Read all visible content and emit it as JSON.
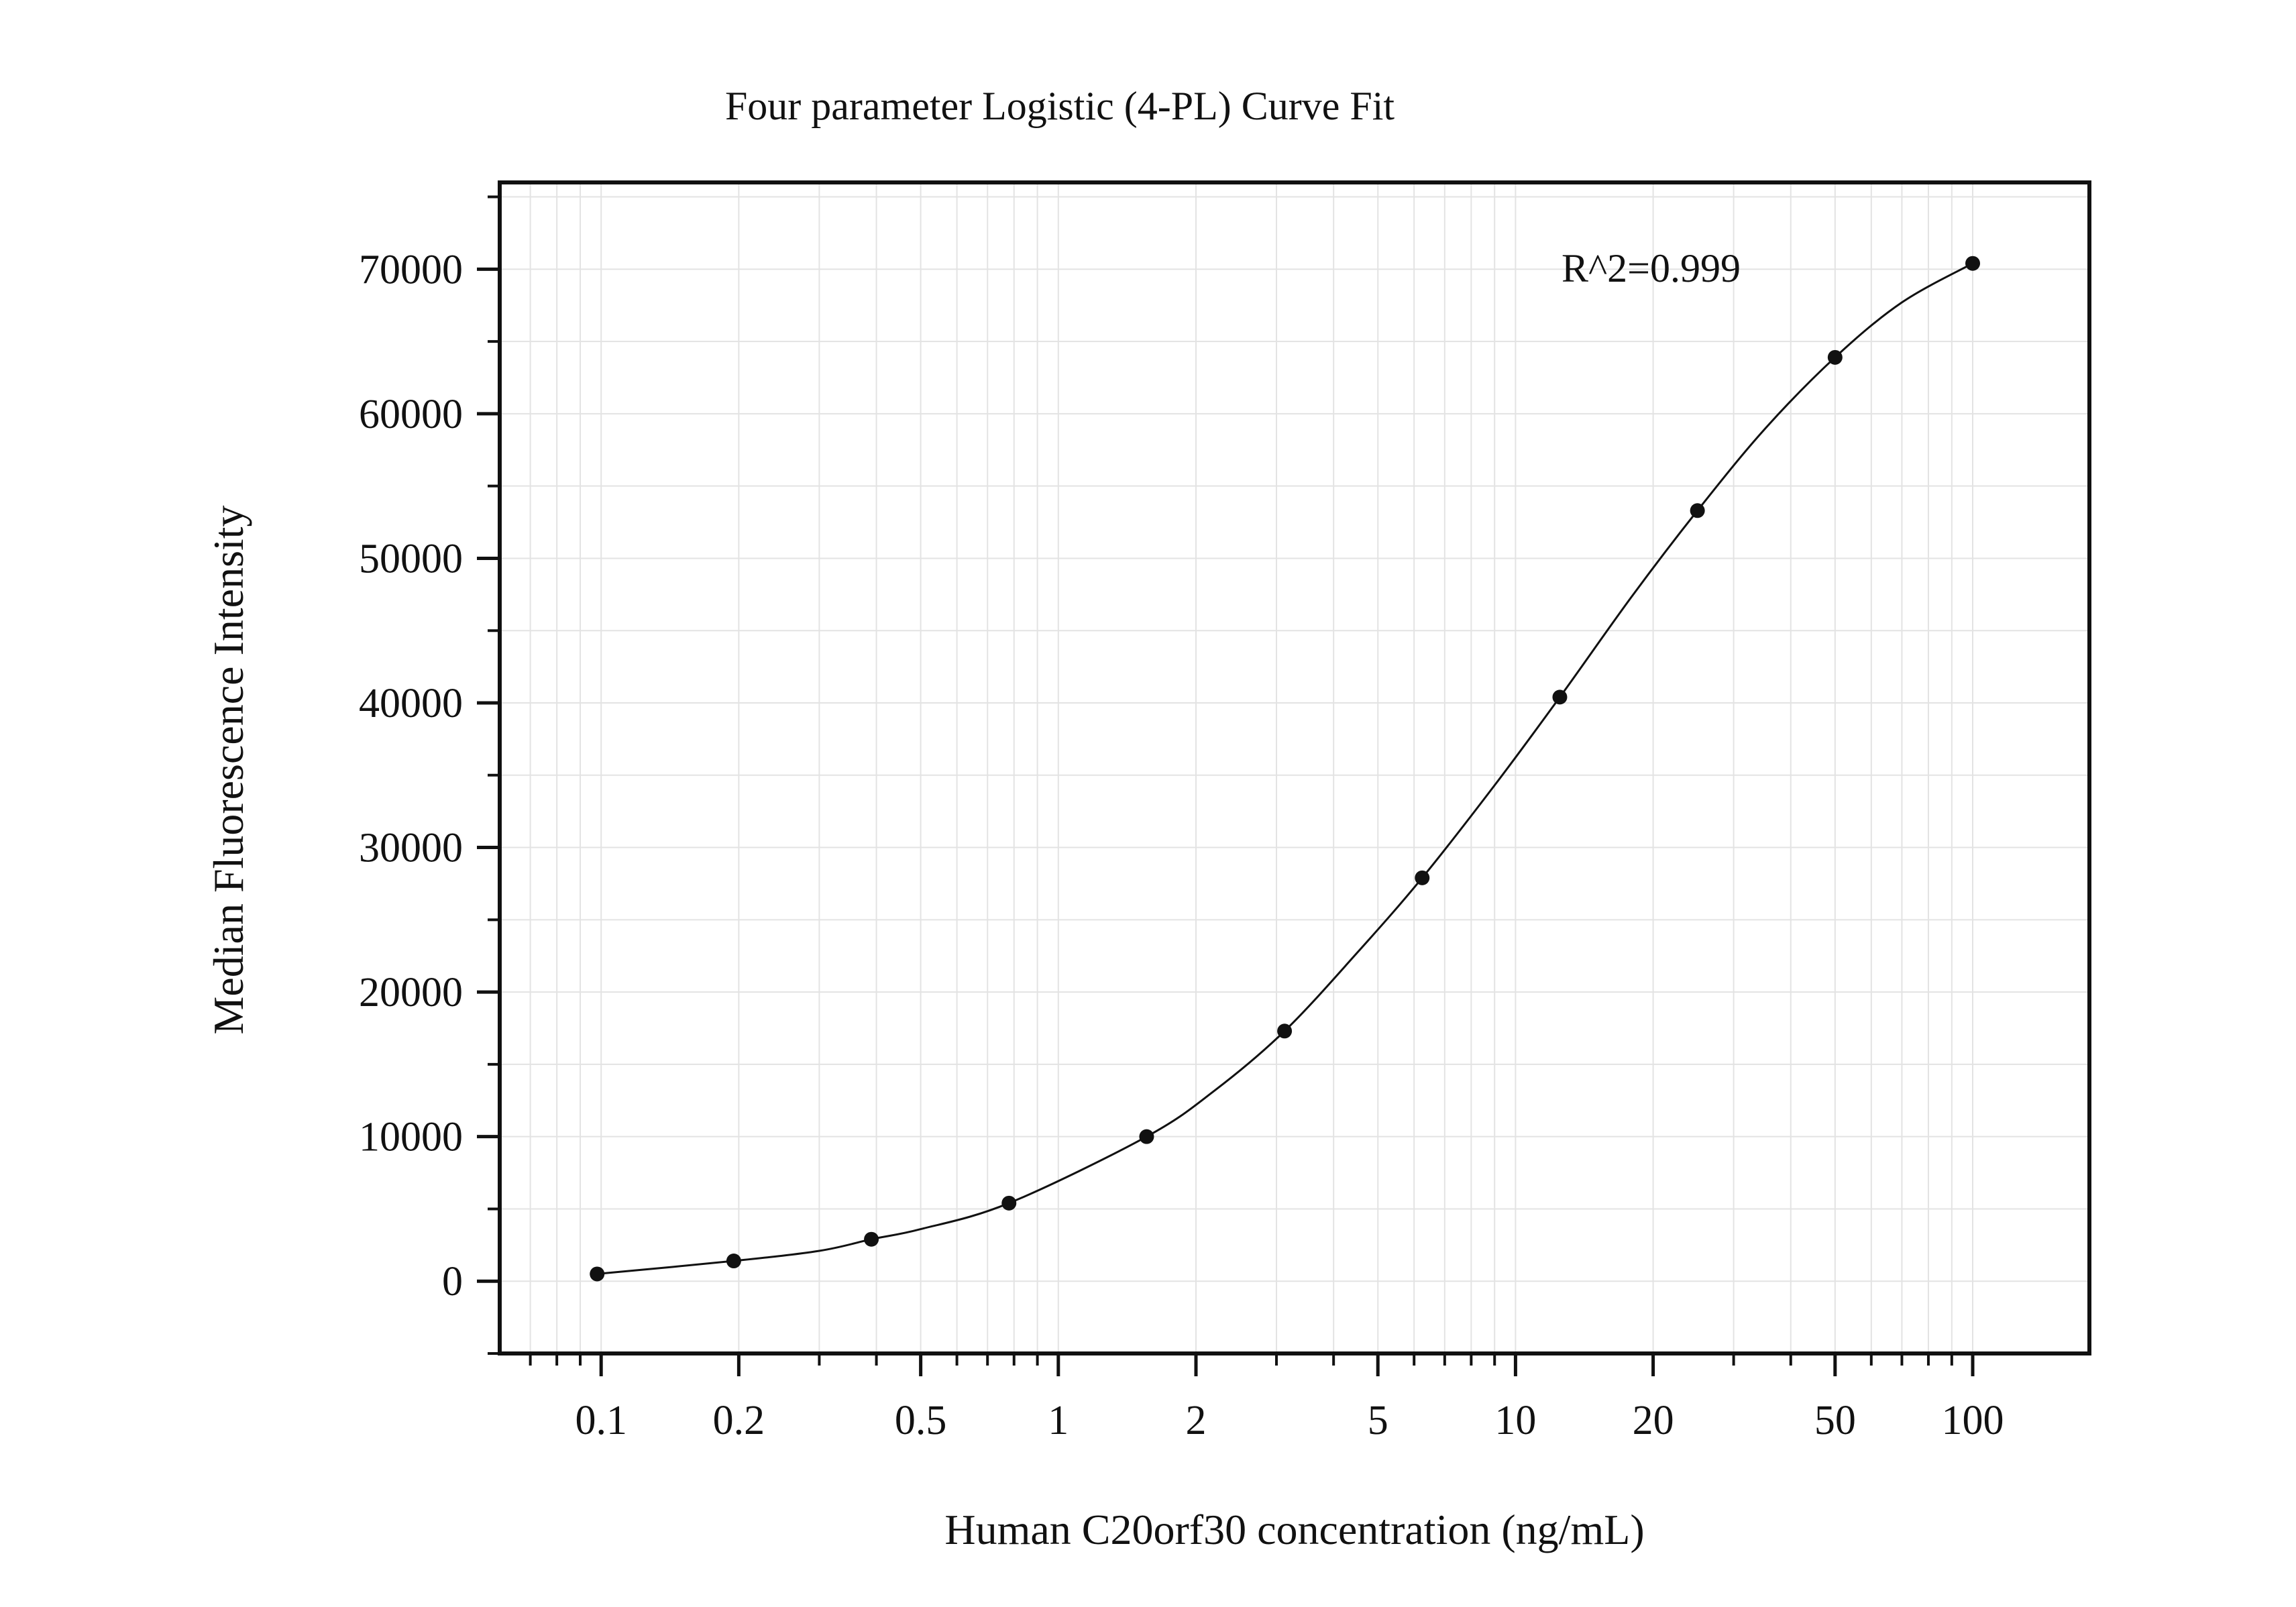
{
  "chart_data": {
    "type": "scatter",
    "title": "Four parameter Logistic (4-PL) Curve Fit",
    "xlabel": "Human C20orf30 concentration (ng/mL)",
    "ylabel": "Median Fluorescence Intensity",
    "x_scale": "log",
    "xlim": [
      0.06,
      180
    ],
    "ylim": [
      -5000,
      76000
    ],
    "x_ticks": [
      0.1,
      0.2,
      0.5,
      1,
      2,
      5,
      10,
      20,
      50,
      100
    ],
    "x_tick_labels": [
      "0.1",
      "0.2",
      "0.5",
      "1",
      "2",
      "5",
      "10",
      "20",
      "50",
      "100"
    ],
    "y_ticks": [
      0,
      10000,
      20000,
      30000,
      40000,
      50000,
      60000,
      70000
    ],
    "y_tick_labels": [
      "0",
      "10000",
      "20000",
      "30000",
      "40000",
      "50000",
      "60000",
      "70000"
    ],
    "grid": true,
    "annotation": "R^2=0.999",
    "series": [
      {
        "x": [
          0.098,
          0.195,
          0.39,
          0.78,
          1.56,
          3.125,
          6.25,
          12.5,
          25,
          50,
          100
        ],
        "y": [
          500,
          1400,
          2900,
          5400,
          10000,
          17300,
          27900,
          40400,
          53300,
          63900,
          70400
        ]
      }
    ],
    "fit_curve": {
      "x": [
        0.098,
        0.195,
        0.3,
        0.39,
        0.5,
        0.78,
        1.56,
        2.2,
        3.125,
        4.5,
        6.25,
        9,
        12.5,
        18,
        25,
        35,
        50,
        70,
        100
      ],
      "y": [
        500,
        1400,
        2100,
        2900,
        3600,
        5400,
        10000,
        13200,
        17300,
        22700,
        27900,
        34300,
        40400,
        47400,
        53300,
        58900,
        63900,
        67700,
        70400
      ]
    },
    "colors": {
      "marker": "#111111",
      "line": "#111111",
      "grid": "#e3e3e3",
      "frame": "#111111"
    }
  }
}
